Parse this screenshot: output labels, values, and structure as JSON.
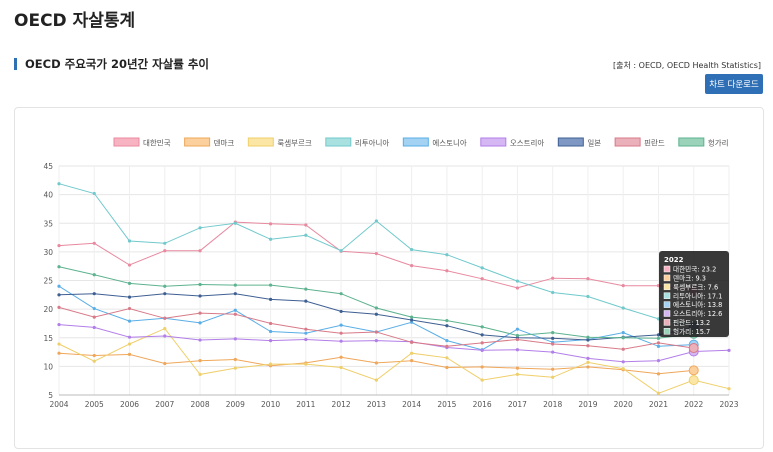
{
  "page": {
    "title": "OECD 자살통계",
    "section_title": "OECD 주요국가 20년간 자살률 추이",
    "source": "[출처 : OECD, OECD Health Statistics]",
    "download_label": "차트 다운로드"
  },
  "chart_data": {
    "type": "line",
    "title": "",
    "xlabel": "",
    "ylabel": "",
    "ylim": [
      5,
      45
    ],
    "yticks": [
      5,
      10,
      15,
      20,
      25,
      30,
      35,
      40,
      45
    ],
    "grid": true,
    "legend_position": "top",
    "x": [
      "2004",
      "2005",
      "2006",
      "2007",
      "2008",
      "2009",
      "2010",
      "2011",
      "2012",
      "2013",
      "2014",
      "2015",
      "2016",
      "2017",
      "2018",
      "2019",
      "2020",
      "2021",
      "2022",
      "2023"
    ],
    "series": [
      {
        "name": "대한민국",
        "color": "#e8899f",
        "fill": "#f7b3c2",
        "values": [
          31.1,
          31.5,
          27.7,
          30.2,
          30.2,
          35.2,
          34.9,
          34.7,
          30.1,
          29.7,
          27.6,
          26.7,
          25.3,
          23.7,
          25.4,
          25.3,
          24.1,
          24.1,
          23.2,
          null
        ]
      },
      {
        "name": "덴마크",
        "color": "#efa75a",
        "fill": "#fcd09c",
        "values": [
          12.3,
          11.9,
          12.1,
          10.5,
          11,
          11.2,
          10.1,
          10.6,
          11.6,
          10.6,
          11,
          9.8,
          9.9,
          9.7,
          9.5,
          9.9,
          9.4,
          8.7,
          9.3,
          null
        ]
      },
      {
        "name": "룩셈부르크",
        "color": "#efcf6a",
        "fill": "#fbe6a6",
        "values": [
          13.9,
          10.9,
          13.9,
          16.6,
          8.6,
          9.7,
          10.4,
          10.4,
          9.8,
          7.6,
          12.3,
          11.5,
          7.6,
          8.6,
          8.1,
          10.7,
          9.6,
          5.3,
          7.6,
          6.1
        ]
      },
      {
        "name": "리투아니아",
        "color": "#71c9cc",
        "fill": "#a9e1e1",
        "values": [
          41.9,
          40.2,
          31.9,
          31.5,
          34.2,
          35,
          32.2,
          32.9,
          30.2,
          35.4,
          30.4,
          29.5,
          27.2,
          24.9,
          22.9,
          22.2,
          20.2,
          18.3,
          17.1,
          null
        ]
      },
      {
        "name": "에스토니아",
        "color": "#5aaee6",
        "fill": "#a3d2f2",
        "values": [
          24,
          20.1,
          17.9,
          18.4,
          17.6,
          19.8,
          16.1,
          15.8,
          17.2,
          16,
          17.7,
          14.5,
          12.9,
          16.5,
          14.2,
          14.7,
          15.9,
          13.5,
          13.8,
          null
        ]
      },
      {
        "name": "오스트리아",
        "color": "#b27ee8",
        "fill": "#d4b7f3",
        "values": [
          17.3,
          16.8,
          15.1,
          15.3,
          14.6,
          14.8,
          14.5,
          14.7,
          14.4,
          14.5,
          14.3,
          13.3,
          12.8,
          12.9,
          12.5,
          11.4,
          10.8,
          11,
          12.6,
          12.8
        ]
      },
      {
        "name": "일본",
        "color": "#3e5f92",
        "fill": "#7f98c3",
        "values": [
          22.5,
          22.7,
          22.1,
          22.7,
          22.3,
          22.7,
          21.7,
          21.4,
          19.6,
          19.1,
          18.1,
          17.1,
          15.5,
          15,
          14.9,
          14.6,
          15.1,
          15.5,
          16.8,
          null
        ]
      },
      {
        "name": "핀란드",
        "color": "#d87a88",
        "fill": "#eab1ba",
        "values": [
          20.3,
          18.6,
          20.1,
          18.4,
          19.3,
          19.1,
          17.5,
          16.5,
          15.8,
          16,
          14.2,
          13.5,
          14.1,
          14.7,
          13.9,
          13.6,
          13,
          14.1,
          13.2,
          null
        ]
      },
      {
        "name": "헝가리",
        "color": "#5db28f",
        "fill": "#9ad3b9",
        "values": [
          27.4,
          26,
          24.5,
          24,
          24.3,
          24.2,
          24.2,
          23.5,
          22.7,
          20.2,
          18.6,
          18,
          16.9,
          15.4,
          15.9,
          15.1,
          15,
          14.9,
          15.7,
          null
        ]
      }
    ],
    "tooltip": {
      "title": "2022",
      "year_index": 18,
      "items": [
        {
          "label": "대한민국: 23.2",
          "color": "#f7b3c2"
        },
        {
          "label": "덴마크: 9.3",
          "color": "#fcd09c"
        },
        {
          "label": "룩셈부르크: 7.6",
          "color": "#fbe6a6"
        },
        {
          "label": "리투아니아: 17.1",
          "color": "#a9e1e1"
        },
        {
          "label": "에스토니아: 13.8",
          "color": "#a3d2f2"
        },
        {
          "label": "오스트리아: 12.6",
          "color": "#d4b7f3"
        },
        {
          "label": "핀란드: 13.2",
          "color": "#eab1ba"
        },
        {
          "label": "헝가리: 15.7",
          "color": "#9ad3b9"
        }
      ]
    }
  }
}
